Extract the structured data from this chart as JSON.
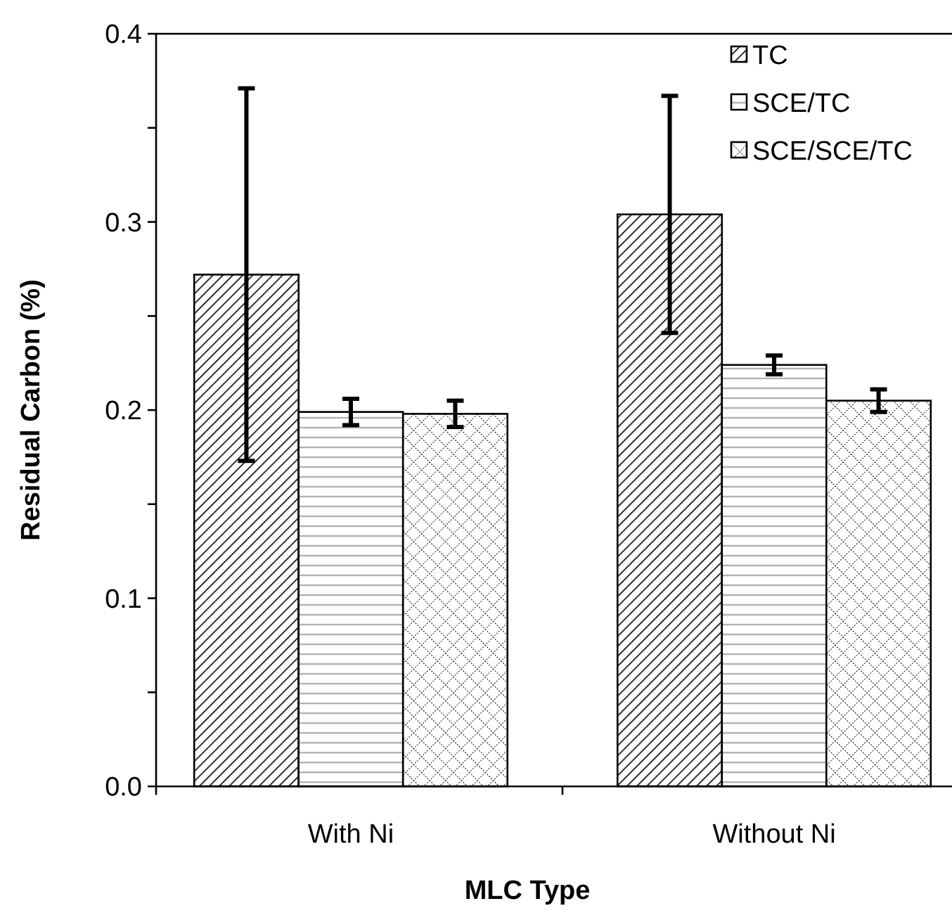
{
  "chart_data": {
    "type": "bar",
    "xlabel": "MLC Type",
    "ylabel": "Residual Carbon (%)",
    "categories": [
      "With Ni",
      "Without Ni"
    ],
    "series": [
      {
        "name": "TC",
        "color": "#000000",
        "values": [
          0.272,
          0.304
        ],
        "errors": [
          0.099,
          0.063
        ]
      },
      {
        "name": "SCE/TC",
        "color": "#000000",
        "values": [
          0.199,
          0.224
        ],
        "errors": [
          0.007,
          0.005
        ]
      },
      {
        "name": "SCE/SCE/TC",
        "color": "#000000",
        "values": [
          0.198,
          0.205
        ],
        "errors": [
          0.007,
          0.006
        ]
      }
    ],
    "ylim": [
      0,
      0.4
    ],
    "yticks": [
      {
        "value": 0,
        "label": "0.0"
      },
      {
        "value": 0.05,
        "label": null
      },
      0.1,
      {
        "value": 0.15,
        "label": null
      },
      0.2,
      {
        "value": 0.25,
        "label": null
      },
      0.3,
      {
        "value": 0.35,
        "label": null
      },
      0.4
    ],
    "grid": false,
    "legend": "top right"
  }
}
